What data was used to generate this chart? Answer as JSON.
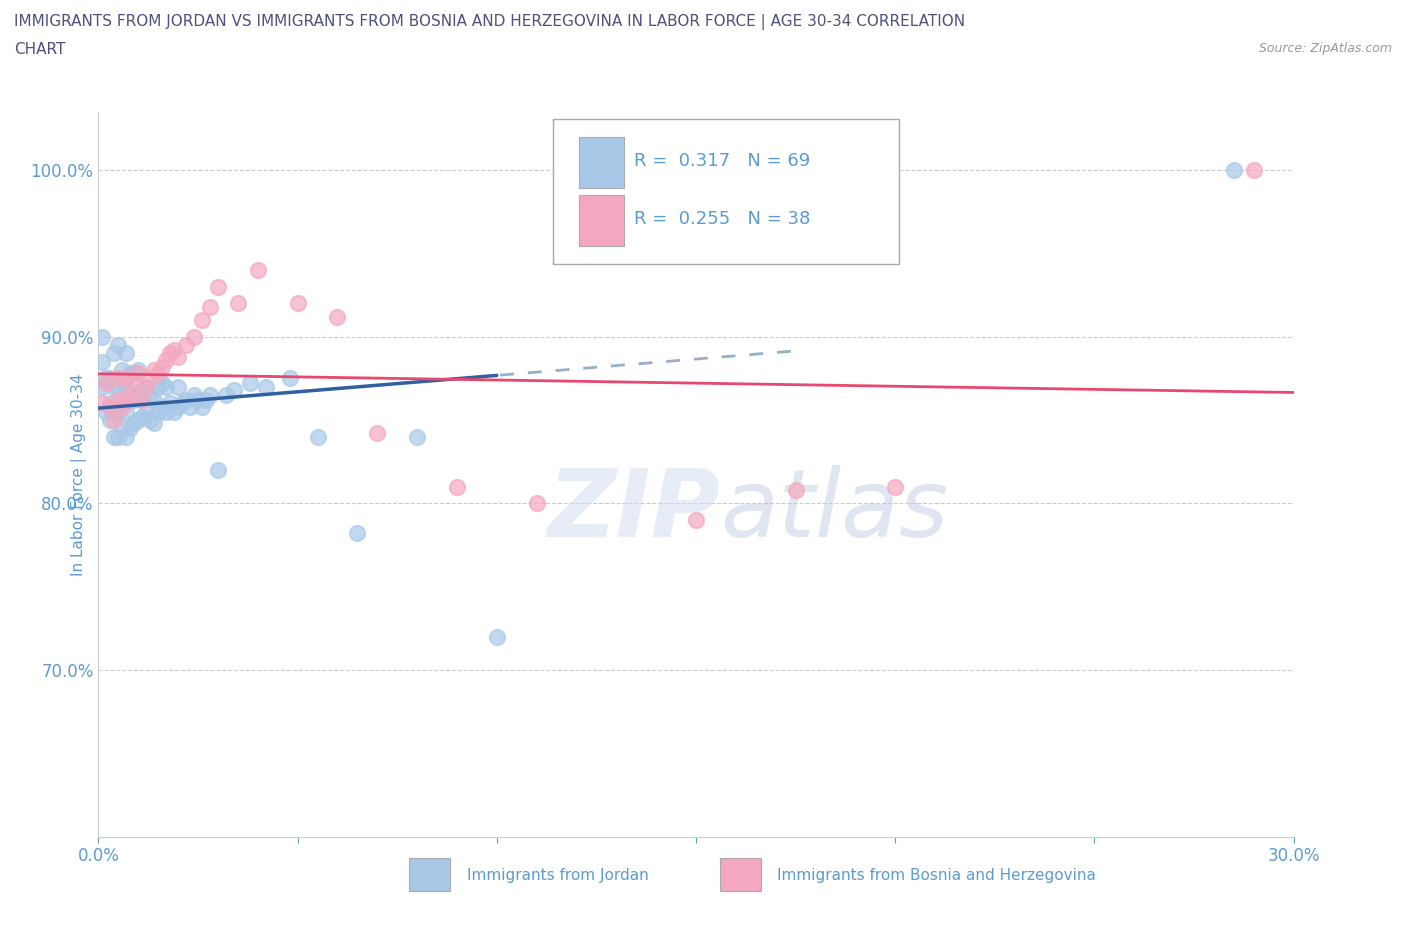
{
  "title_line1": "IMMIGRANTS FROM JORDAN VS IMMIGRANTS FROM BOSNIA AND HERZEGOVINA IN LABOR FORCE | AGE 30-34 CORRELATION",
  "title_line2": "CHART",
  "source_text": "Source: ZipAtlas.com",
  "ylabel": "In Labor Force | Age 30-34",
  "xlim": [
    0.0,
    0.3
  ],
  "ylim": [
    0.6,
    1.035
  ],
  "xticks": [
    0.0,
    0.05,
    0.1,
    0.15,
    0.2,
    0.25,
    0.3
  ],
  "xticklabels": [
    "0.0%",
    "",
    "",
    "",
    "",
    "",
    "30.0%"
  ],
  "yticks": [
    0.7,
    0.8,
    0.9,
    1.0
  ],
  "yticklabels": [
    "70.0%",
    "80.0%",
    "90.0%",
    "100.0%"
  ],
  "jordan_color": "#a8c8e8",
  "bosnia_color": "#f4a8c0",
  "jordan_line_color": "#3060a0",
  "bosnia_line_color": "#e84870",
  "R_jordan": 0.317,
  "N_jordan": 69,
  "R_bosnia": 0.255,
  "N_bosnia": 38,
  "jordan_x": [
    0.001,
    0.001,
    0.001,
    0.002,
    0.002,
    0.003,
    0.003,
    0.003,
    0.004,
    0.004,
    0.004,
    0.004,
    0.005,
    0.005,
    0.005,
    0.005,
    0.006,
    0.006,
    0.006,
    0.007,
    0.007,
    0.007,
    0.007,
    0.008,
    0.008,
    0.008,
    0.009,
    0.009,
    0.009,
    0.01,
    0.01,
    0.01,
    0.011,
    0.011,
    0.012,
    0.012,
    0.013,
    0.013,
    0.014,
    0.014,
    0.015,
    0.015,
    0.016,
    0.016,
    0.017,
    0.017,
    0.018,
    0.019,
    0.02,
    0.02,
    0.021,
    0.022,
    0.023,
    0.024,
    0.025,
    0.026,
    0.027,
    0.028,
    0.03,
    0.032,
    0.034,
    0.038,
    0.042,
    0.048,
    0.055,
    0.065,
    0.08,
    0.1,
    0.285
  ],
  "jordan_y": [
    0.87,
    0.885,
    0.9,
    0.855,
    0.875,
    0.85,
    0.86,
    0.875,
    0.84,
    0.855,
    0.87,
    0.89,
    0.84,
    0.855,
    0.87,
    0.895,
    0.845,
    0.86,
    0.88,
    0.84,
    0.855,
    0.87,
    0.89,
    0.845,
    0.862,
    0.878,
    0.848,
    0.862,
    0.878,
    0.85,
    0.865,
    0.88,
    0.852,
    0.868,
    0.855,
    0.87,
    0.85,
    0.865,
    0.848,
    0.862,
    0.855,
    0.87,
    0.858,
    0.872,
    0.855,
    0.87,
    0.86,
    0.855,
    0.858,
    0.87,
    0.86,
    0.862,
    0.858,
    0.865,
    0.862,
    0.858,
    0.862,
    0.865,
    0.82,
    0.865,
    0.868,
    0.872,
    0.87,
    0.875,
    0.84,
    0.782,
    0.84,
    0.72,
    1.0
  ],
  "bosnia_x": [
    0.001,
    0.002,
    0.003,
    0.004,
    0.005,
    0.005,
    0.006,
    0.007,
    0.007,
    0.008,
    0.009,
    0.01,
    0.011,
    0.012,
    0.013,
    0.014,
    0.015,
    0.016,
    0.017,
    0.018,
    0.019,
    0.02,
    0.022,
    0.024,
    0.026,
    0.028,
    0.03,
    0.035,
    0.04,
    0.05,
    0.06,
    0.07,
    0.09,
    0.11,
    0.15,
    0.175,
    0.2,
    0.29
  ],
  "bosnia_y": [
    0.86,
    0.872,
    0.858,
    0.85,
    0.862,
    0.875,
    0.858,
    0.862,
    0.875,
    0.865,
    0.872,
    0.878,
    0.862,
    0.87,
    0.875,
    0.88,
    0.878,
    0.882,
    0.886,
    0.89,
    0.892,
    0.888,
    0.895,
    0.9,
    0.91,
    0.918,
    0.93,
    0.92,
    0.94,
    0.92,
    0.912,
    0.842,
    0.81,
    0.8,
    0.79,
    0.808,
    0.81,
    1.0
  ],
  "watermark_part1": "ZIP",
  "watermark_part2": "atlas",
  "grid_color": "#cccccc",
  "title_color": "#505080",
  "axis_label_color": "#5b9bd5",
  "tick_color": "#5b9bd5",
  "legend_text_color": "#000000",
  "legend_number_color": "#5b9bd5"
}
